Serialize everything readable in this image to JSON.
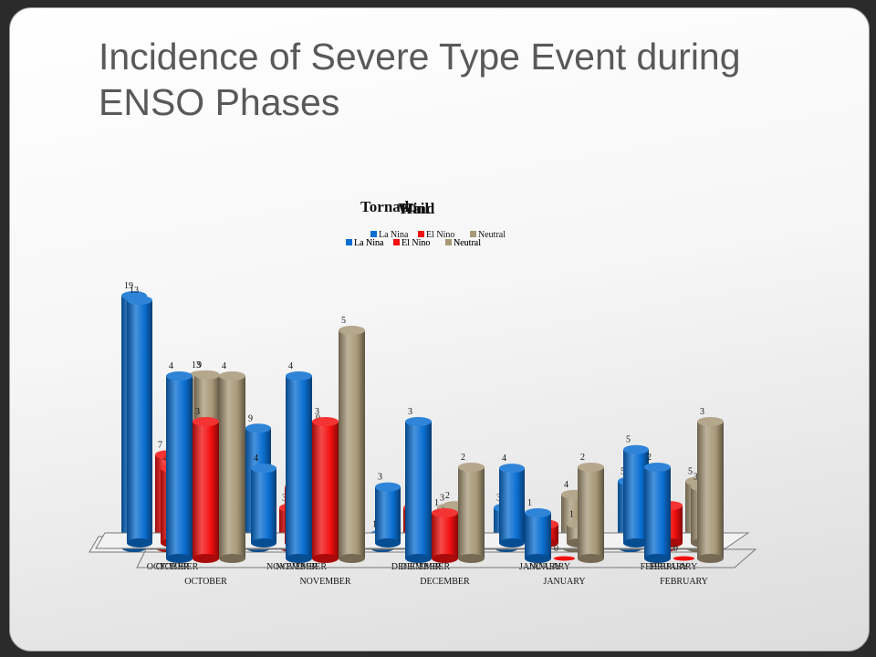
{
  "slide": {
    "title": "Incidence of Severe Type Event during ENSO Phases"
  },
  "colors": {
    "la_nina": "#0a6ed1",
    "el_nino": "#f20f0f",
    "neutral": "#a89878"
  },
  "chart_data": [
    {
      "type": "bar",
      "layer": "back",
      "title": "Hail",
      "categories": [
        "OCTOBER",
        "NOVEMBER",
        "DECEMBER",
        "JANUARY",
        "FEBRUARY"
      ],
      "series": [
        {
          "name": "La Nina",
          "values": [
            19,
            9,
            1,
            3,
            5
          ]
        },
        {
          "name": "El Nino",
          "values": [
            7,
            3,
            3,
            1,
            2
          ]
        },
        {
          "name": "Neutral",
          "values": [
            13,
            9,
            3,
            4,
            5
          ]
        }
      ]
    },
    {
      "type": "bar",
      "layer": "middle",
      "title": "Wind",
      "categories": [
        "OCTOBER",
        "NOVEMBER",
        "DECEMBER",
        "JANUARY",
        "FEBRUARY"
      ],
      "series": [
        {
          "name": "La Nina",
          "values": [
            13,
            4,
            3,
            4,
            5
          ]
        },
        {
          "name": "El Nino",
          "values": [
            4,
            3,
            1,
            1,
            2
          ]
        },
        {
          "name": "Neutral",
          "values": [
            9,
            5,
            2,
            1,
            3
          ]
        }
      ]
    },
    {
      "type": "bar",
      "layer": "front",
      "title": "Tornado",
      "categories": [
        "OCTOBER",
        "NOVEMBER",
        "DECEMBER",
        "JANUARY",
        "FEBRUARY"
      ],
      "series": [
        {
          "name": "La Nina",
          "values": [
            4,
            4,
            3,
            1,
            2
          ]
        },
        {
          "name": "El Nino",
          "values": [
            3,
            3,
            1,
            0,
            0
          ]
        },
        {
          "name": "Neutral",
          "values": [
            4,
            5,
            2,
            2,
            3
          ]
        }
      ]
    }
  ]
}
